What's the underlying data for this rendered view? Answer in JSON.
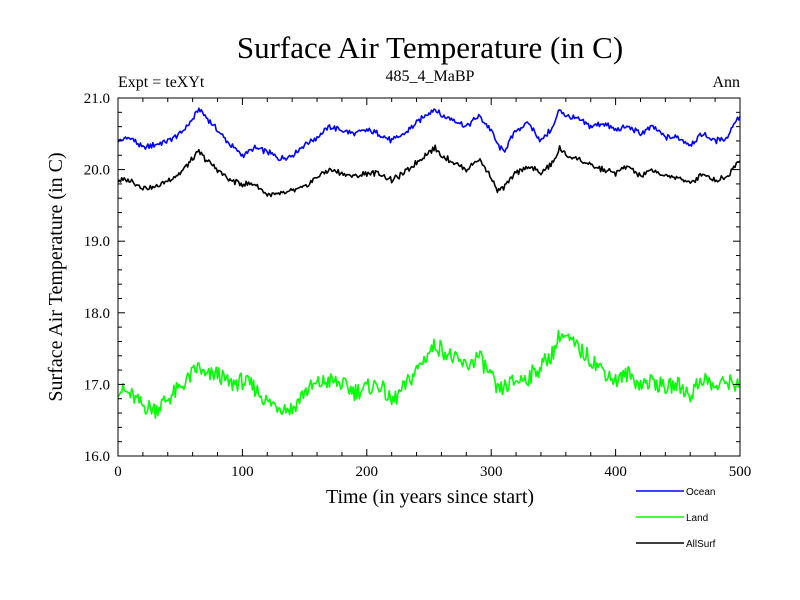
{
  "chart_data": {
    "type": "line",
    "title": "Surface Air Temperature (in C)",
    "subtitle_left": "Expt = teXYt",
    "subtitle_center": "485_4_MaBP",
    "subtitle_right": "Ann",
    "xlabel": "Time (in years since start)",
    "ylabel": "Surface Air Temperature (in C)",
    "xlim": [
      0,
      500
    ],
    "ylim": [
      16.0,
      21.0
    ],
    "xticks": [
      0,
      100,
      200,
      300,
      400,
      500
    ],
    "xtick_labels": [
      "0",
      "100",
      "200",
      "300",
      "400",
      "500"
    ],
    "yticks": [
      16.0,
      17.0,
      18.0,
      19.0,
      20.0,
      21.0
    ],
    "ytick_labels": [
      "16.0",
      "17.0",
      "18.0",
      "19.0",
      "20.0",
      "21.0"
    ],
    "grid": false,
    "legend_position": "bottom-right, below plot",
    "series": [
      {
        "name": "Ocean",
        "color": "#0000ff",
        "x": [
          0,
          10,
          20,
          30,
          40,
          50,
          60,
          65,
          70,
          80,
          90,
          100,
          110,
          120,
          130,
          140,
          150,
          160,
          170,
          180,
          190,
          200,
          210,
          220,
          230,
          240,
          250,
          255,
          260,
          270,
          280,
          290,
          300,
          305,
          310,
          320,
          330,
          340,
          350,
          355,
          360,
          370,
          380,
          390,
          400,
          410,
          420,
          430,
          440,
          450,
          460,
          470,
          480,
          490,
          495,
          500
        ],
        "y": [
          20.4,
          20.45,
          20.3,
          20.35,
          20.4,
          20.5,
          20.7,
          20.85,
          20.75,
          20.55,
          20.35,
          20.2,
          20.3,
          20.25,
          20.15,
          20.2,
          20.35,
          20.45,
          20.6,
          20.55,
          20.5,
          20.55,
          20.5,
          20.4,
          20.5,
          20.65,
          20.8,
          20.85,
          20.75,
          20.7,
          20.6,
          20.75,
          20.55,
          20.35,
          20.25,
          20.55,
          20.65,
          20.4,
          20.6,
          20.85,
          20.75,
          20.7,
          20.6,
          20.65,
          20.55,
          20.6,
          20.5,
          20.6,
          20.45,
          20.45,
          20.35,
          20.5,
          20.4,
          20.45,
          20.65,
          20.75
        ]
      },
      {
        "name": "Land",
        "color": "#00ff00",
        "x": [
          0,
          10,
          20,
          30,
          40,
          50,
          60,
          65,
          70,
          80,
          90,
          100,
          110,
          120,
          130,
          140,
          150,
          160,
          170,
          180,
          190,
          200,
          210,
          220,
          230,
          240,
          250,
          255,
          260,
          270,
          280,
          290,
          300,
          305,
          310,
          320,
          330,
          340,
          350,
          355,
          360,
          370,
          380,
          390,
          400,
          410,
          420,
          430,
          440,
          450,
          460,
          470,
          480,
          490,
          495,
          500
        ],
        "y": [
          16.95,
          16.85,
          16.7,
          16.65,
          16.8,
          16.95,
          17.15,
          17.25,
          17.1,
          17.15,
          17.0,
          17.05,
          16.95,
          16.75,
          16.7,
          16.65,
          16.9,
          17.0,
          17.05,
          17.0,
          16.9,
          16.95,
          17.0,
          16.75,
          16.95,
          17.2,
          17.45,
          17.55,
          17.5,
          17.35,
          17.25,
          17.4,
          17.1,
          16.9,
          16.95,
          17.05,
          17.1,
          17.25,
          17.45,
          17.7,
          17.65,
          17.5,
          17.35,
          17.2,
          17.05,
          17.15,
          17.0,
          17.05,
          16.95,
          17.0,
          16.85,
          17.1,
          16.95,
          17.05,
          17.0,
          17.05
        ]
      },
      {
        "name": "AllSurf",
        "color": "#000000",
        "x": [
          0,
          10,
          20,
          30,
          40,
          50,
          60,
          65,
          70,
          80,
          90,
          100,
          110,
          120,
          130,
          140,
          150,
          160,
          170,
          180,
          190,
          200,
          210,
          220,
          230,
          240,
          250,
          255,
          260,
          270,
          280,
          290,
          300,
          305,
          310,
          320,
          330,
          340,
          350,
          355,
          360,
          370,
          380,
          390,
          400,
          410,
          420,
          430,
          440,
          450,
          460,
          470,
          480,
          490,
          495,
          500
        ],
        "y": [
          19.85,
          19.85,
          19.75,
          19.75,
          19.85,
          19.95,
          20.15,
          20.25,
          20.15,
          20.0,
          19.85,
          19.8,
          19.8,
          19.65,
          19.65,
          19.7,
          19.75,
          19.9,
          20.0,
          19.95,
          19.9,
          19.95,
          19.95,
          19.85,
          19.95,
          20.1,
          20.25,
          20.3,
          20.2,
          20.1,
          20.0,
          20.15,
          19.9,
          19.7,
          19.75,
          19.95,
          20.05,
          19.95,
          20.1,
          20.3,
          20.2,
          20.15,
          20.05,
          20.0,
          19.95,
          20.05,
          19.9,
          20.0,
          19.9,
          19.9,
          19.8,
          19.95,
          19.85,
          19.9,
          20.05,
          20.15
        ]
      }
    ]
  }
}
